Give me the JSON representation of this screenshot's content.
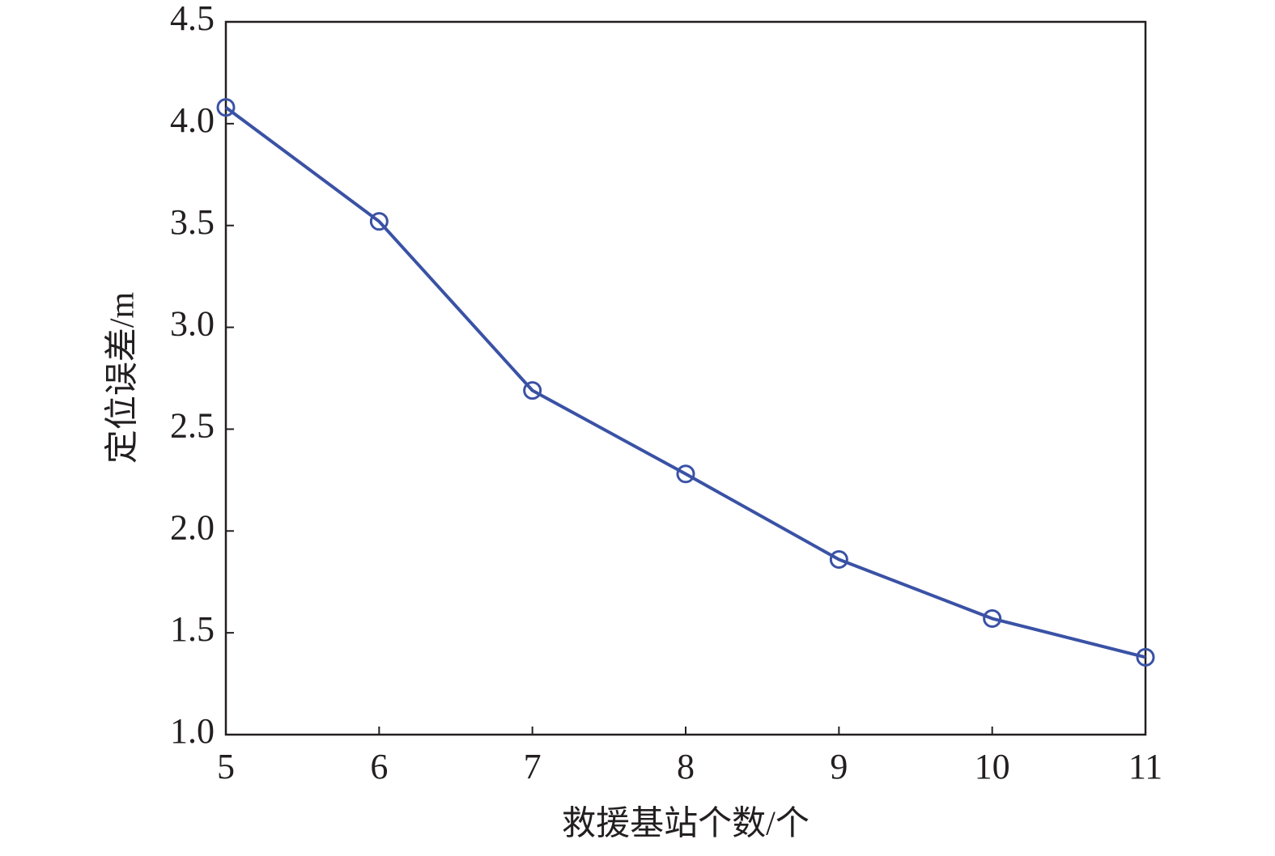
{
  "chart_data": {
    "type": "line",
    "x_label": "救援基站个数/个",
    "y_label": "定位误差/m",
    "x": [
      5,
      6,
      7,
      8,
      9,
      10,
      11
    ],
    "values": [
      4.08,
      3.52,
      2.69,
      2.28,
      1.86,
      1.57,
      1.38
    ],
    "color": "#3a52a5",
    "marker": "open-circle",
    "xlim": [
      5,
      11
    ],
    "xticks": [
      5,
      6,
      7,
      8,
      9,
      10,
      11
    ],
    "ylim": [
      1,
      4.5
    ],
    "yticks": [
      {
        "value": 1,
        "label": "1.0"
      },
      1.5,
      {
        "value": 2,
        "label": "2.0"
      },
      2.5,
      {
        "value": 3,
        "label": "3.0"
      },
      3.5,
      {
        "value": 4,
        "label": "4.0"
      },
      4.5
    ],
    "grid": false
  }
}
